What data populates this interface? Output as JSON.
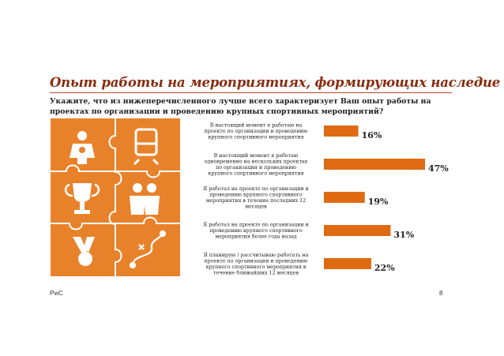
{
  "header": {
    "title": "Опыт работы на мероприятиях, формирующих наследие",
    "question": "Укажите, что из нижеперечисленного лучше всего характеризует Ваш опыт работы на проектах по организации и проведению крупных спортивных мероприятий?"
  },
  "footer": {
    "brand": "PwC",
    "page": "8"
  },
  "colors": {
    "accent": "#e06a12",
    "title": "#8a2b0e",
    "bar": "#e06a12",
    "puzzle": "#e8822a"
  },
  "puzzle_icons": [
    "medal-bearer-icon",
    "train-icon",
    "trophy-icon",
    "people-icon",
    "victory-medal-icon",
    "route-icon"
  ],
  "chart_data": {
    "type": "bar",
    "orientation": "horizontal",
    "categories": [
      [
        "В настоящий момент я работаю на",
        "проекте по организации и проведению",
        "крупного спортивного мероприятия"
      ],
      [
        "В настоящий момент я работаю",
        "одновременно на нескольких проектах",
        "по организации  и проведению",
        "крупного спортивного мероприятия"
      ],
      [
        "Я работал на проекте по организации и",
        "проведению крупного спортивного",
        "мероприятия в течение последних 12",
        "месяцев"
      ],
      [
        "Я работал на проекте по организации и",
        "проведению крупного спортивного",
        "мероприятия более года назад"
      ],
      [
        "Я планирую / рассчитываю работать на",
        "проекте по организации и проведению",
        "крупного спортивного мероприятия в",
        "течение ближайших 12 месяцев"
      ]
    ],
    "values": [
      16,
      47,
      19,
      31,
      22
    ],
    "value_labels": [
      "16%",
      "47%",
      "19%",
      "31%",
      "22%"
    ],
    "xlim": [
      0,
      47
    ]
  }
}
